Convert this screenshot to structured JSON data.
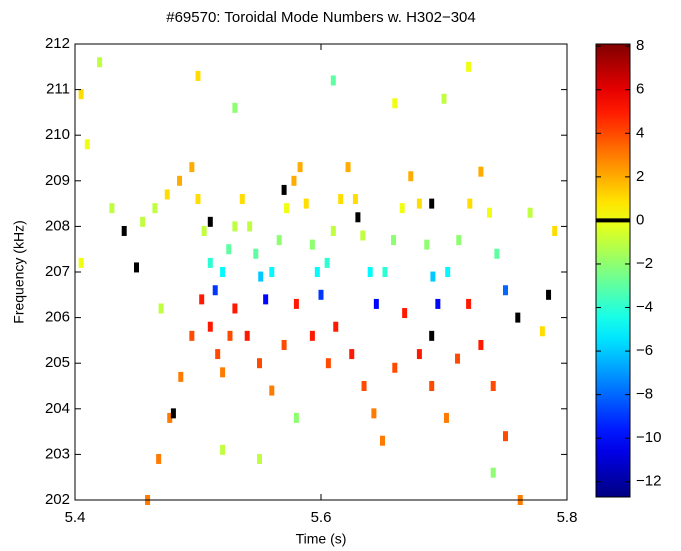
{
  "chart_data": {
    "type": "scatter",
    "title": "#69570: Toroidal Mode Numbers w. H302−304",
    "x_label": "Time (s)",
    "y_label": "Frequency (kHz)",
    "xlim": [
      5.4,
      5.8
    ],
    "xticks": [
      5.4,
      5.6,
      5.8
    ],
    "ylim": [
      202,
      212
    ],
    "yticks": [
      202,
      203,
      204,
      205,
      206,
      207,
      208,
      209,
      210,
      211,
      212
    ],
    "clim": [
      -12.7,
      8.1
    ],
    "cticks": [
      {
        "value": -12,
        "label": "−12"
      },
      {
        "value": -10,
        "label": "−10"
      },
      {
        "value": -8,
        "label": "−8"
      },
      {
        "value": -6,
        "label": "−6"
      },
      {
        "value": -4,
        "label": "−4"
      },
      {
        "value": -2,
        "label": "−2"
      },
      0,
      2,
      4,
      6,
      8
    ],
    "colorbar_marker": 0,
    "colormap": "jet",
    "over_color": "#000000",
    "x": [
      5.455,
      5.465,
      5.475,
      5.485,
      5.495,
      5.5,
      5.505,
      5.51,
      5.514,
      5.52,
      5.525,
      5.53,
      5.536,
      5.542,
      5.547,
      5.551,
      5.555,
      5.56,
      5.566,
      5.572,
      5.578,
      5.583,
      5.588,
      5.593,
      5.597,
      5.6,
      5.605,
      5.61,
      5.616,
      5.622,
      5.628,
      5.634,
      5.64,
      5.645,
      5.652,
      5.659,
      5.666,
      5.673,
      5.68,
      5.686,
      5.691,
      5.695,
      5.703,
      5.712,
      5.721,
      5.73,
      5.737,
      5.743,
      5.75,
      5.459,
      5.468,
      5.477,
      5.486,
      5.495,
      5.503,
      5.51,
      5.516,
      5.52,
      5.526,
      5.53,
      5.54,
      5.55,
      5.56,
      5.57,
      5.58,
      5.593,
      5.606,
      5.612,
      5.625,
      5.635,
      5.643,
      5.65,
      5.66,
      5.668,
      5.68,
      5.69,
      5.702,
      5.711,
      5.72,
      5.73,
      5.74,
      5.75,
      5.762,
      5.405,
      5.41,
      5.42,
      5.43,
      5.405,
      5.44,
      5.47,
      5.5,
      5.53,
      5.55,
      5.58,
      5.61,
      5.66,
      5.7,
      5.72,
      5.77,
      5.79,
      5.785,
      5.78,
      5.74,
      5.52,
      5.48,
      5.63,
      5.57,
      5.69,
      5.51,
      5.45,
      5.76,
      5.69
    ],
    "y": [
      208.1,
      208.4,
      208.7,
      209.0,
      209.3,
      208.6,
      207.9,
      207.2,
      206.6,
      207.0,
      207.5,
      208.0,
      208.6,
      208.0,
      207.4,
      206.9,
      206.4,
      207.0,
      207.7,
      208.4,
      209.0,
      209.3,
      208.5,
      207.6,
      207.0,
      206.5,
      207.2,
      207.9,
      208.6,
      209.3,
      208.6,
      207.8,
      207.0,
      206.3,
      207.0,
      207.7,
      208.4,
      209.1,
      208.5,
      207.6,
      206.9,
      206.3,
      207.0,
      207.7,
      208.5,
      209.2,
      208.3,
      207.4,
      206.6,
      202.0,
      202.9,
      203.8,
      204.7,
      205.6,
      206.4,
      205.8,
      205.2,
      204.8,
      205.6,
      206.2,
      205.6,
      205.0,
      204.4,
      205.4,
      206.3,
      205.6,
      205.0,
      205.8,
      205.2,
      204.5,
      203.9,
      203.3,
      204.9,
      206.1,
      205.2,
      204.5,
      203.8,
      205.1,
      206.3,
      205.4,
      204.5,
      203.4,
      202.0,
      210.9,
      209.8,
      211.6,
      208.4,
      207.2,
      207.9,
      206.2,
      211.3,
      210.6,
      202.9,
      203.8,
      211.2,
      210.7,
      210.8,
      211.5,
      208.3,
      207.9,
      206.5,
      205.7,
      202.6,
      203.1,
      203.9,
      208.2,
      208.8,
      208.5,
      208.1,
      207.1,
      206.0,
      205.6
    ],
    "values": [
      -1,
      -1,
      1,
      2,
      2,
      1,
      -1,
      -4,
      -9,
      -5,
      -3,
      -1,
      1,
      -1,
      -3,
      -6,
      -10,
      -5,
      -2,
      0,
      2,
      2,
      1,
      -2,
      -5,
      -9,
      -4,
      -1,
      1,
      2,
      1,
      -1,
      -5,
      -10,
      -4,
      -2,
      0,
      2,
      1,
      -2,
      -6,
      -10,
      -5,
      -2,
      1,
      2,
      0,
      -3,
      -8,
      3,
      3,
      3,
      3,
      4,
      5,
      5,
      4,
      3,
      4,
      5,
      5,
      4,
      3,
      4,
      5,
      5,
      4,
      5,
      5,
      4,
      3,
      3,
      4,
      5,
      5,
      4,
      3,
      4,
      5,
      5,
      4,
      4,
      3,
      1,
      0,
      -1,
      -1,
      0,
      9,
      -1,
      1,
      -2,
      -1,
      -2,
      -3,
      0,
      -1,
      0,
      -1,
      1,
      9,
      1,
      -2,
      -1,
      9,
      9,
      9,
      9,
      9,
      9,
      9,
      9
    ]
  }
}
